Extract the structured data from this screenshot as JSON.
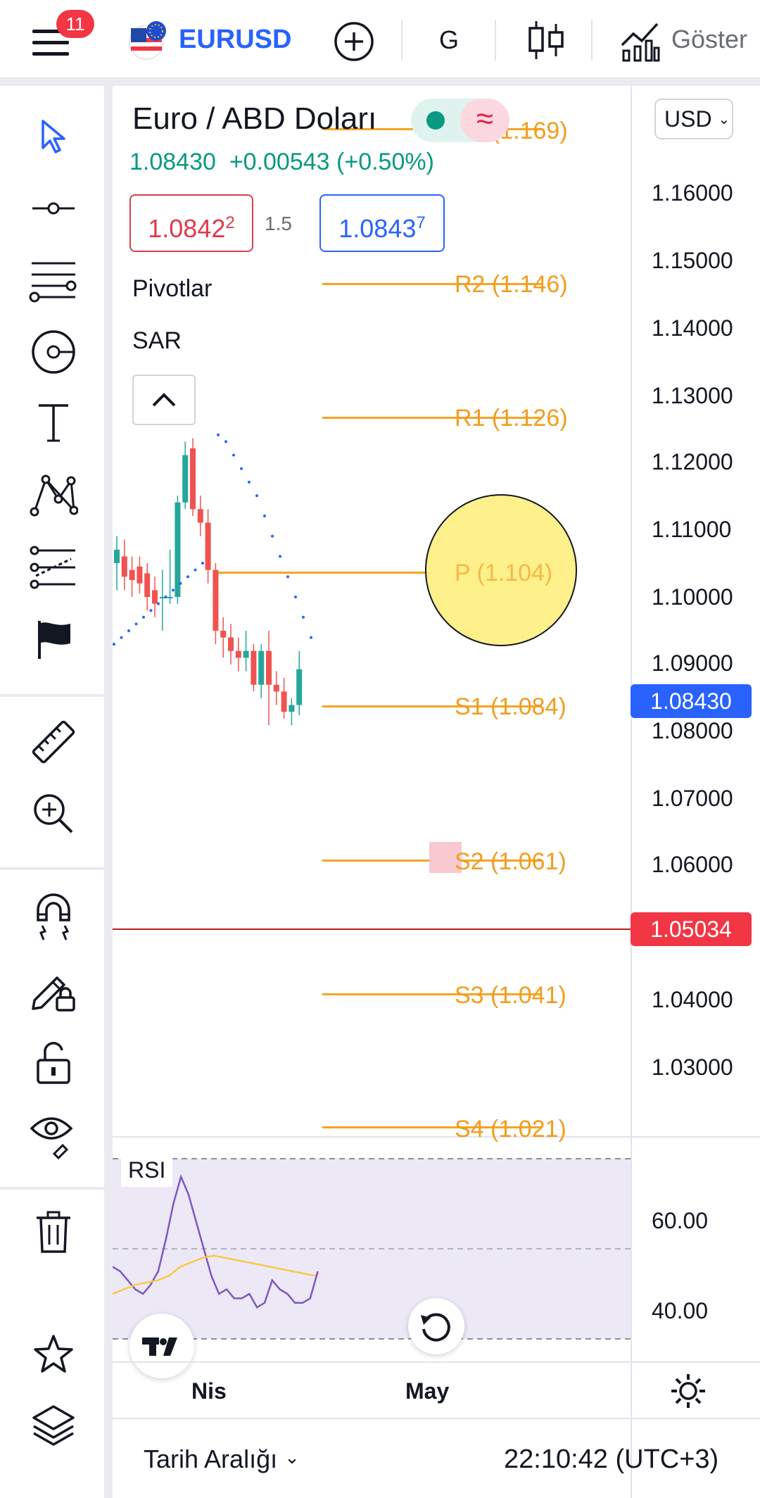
{
  "topbar": {
    "notification_count": "11",
    "symbol": "EURUSD",
    "interval": "G",
    "indicators_label": "Göster"
  },
  "legend": {
    "title": "Euro / ABD Doları",
    "price": "1.08430",
    "change": "+0.00543 (+0.50%)",
    "bid_main": "1.0842",
    "bid_sup": "2",
    "spread": "1.5",
    "ask_main": "1.0843",
    "ask_sup": "7",
    "study_pivots": "Pivotlar",
    "study_sar": "SAR"
  },
  "currency_select": {
    "value": "USD"
  },
  "pivots": [
    {
      "label": "R3 (1.169)",
      "value": 1.169
    },
    {
      "label": "R2 (1.146)",
      "value": 1.146
    },
    {
      "label": "R1 (1.126)",
      "value": 1.126
    },
    {
      "label": "P (1.104)",
      "value": 1.104
    },
    {
      "label": "S1 (1.084)",
      "value": 1.084
    },
    {
      "label": "S2 (1.061)",
      "value": 1.061
    },
    {
      "label": "S3 (1.041)",
      "value": 1.041
    },
    {
      "label": "S4 (1.021)",
      "value": 1.021
    }
  ],
  "price_axis": {
    "ticks": [
      "1.16000",
      "1.15000",
      "1.14000",
      "1.13000",
      "1.12000",
      "1.11000",
      "1.10000",
      "1.09000",
      "1.08000",
      "1.07000",
      "1.06000",
      "1.05000",
      "1.04000",
      "1.03000"
    ],
    "last_price": "1.08430",
    "crosshair_price": "1.05034"
  },
  "rsi": {
    "label": "RSI",
    "ticks": [
      "60.00",
      "40.00"
    ]
  },
  "time_axis": {
    "labels": [
      "Nis",
      "May"
    ]
  },
  "bottombar": {
    "date_range_label": "Tarih Aralığı",
    "clock": "22:10:42 (UTC+3)"
  },
  "colors": {
    "up": "#26a69a",
    "down": "#ef5350",
    "pivot": "#f5a524",
    "accent_blue": "#2962ff",
    "crosshair_red": "#f23645"
  },
  "chart_data": {
    "type": "candlestick",
    "title": "Euro / ABD Doları",
    "ylim": [
      1.015,
      1.175
    ],
    "x_ticks": [
      "Nis",
      "May"
    ],
    "candles": [
      {
        "o": 1.1,
        "h": 1.104,
        "l": 1.096,
        "c": 1.102
      },
      {
        "o": 1.101,
        "h": 1.1035,
        "l": 1.096,
        "c": 1.098
      },
      {
        "o": 1.099,
        "h": 1.101,
        "l": 1.095,
        "c": 1.0975
      },
      {
        "o": 1.0995,
        "h": 1.101,
        "l": 1.0955,
        "c": 1.097
      },
      {
        "o": 1.0985,
        "h": 1.1,
        "l": 1.093,
        "c": 1.095
      },
      {
        "o": 1.096,
        "h": 1.098,
        "l": 1.092,
        "c": 1.094
      },
      {
        "o": 1.095,
        "h": 1.099,
        "l": 1.09,
        "c": 1.095
      },
      {
        "o": 1.095,
        "h": 1.102,
        "l": 1.094,
        "c": 1.095
      },
      {
        "o": 1.095,
        "h": 1.11,
        "l": 1.094,
        "c": 1.109
      },
      {
        "o": 1.109,
        "h": 1.118,
        "l": 1.108,
        "c": 1.116
      },
      {
        "o": 1.117,
        "h": 1.1185,
        "l": 1.107,
        "c": 1.108
      },
      {
        "o": 1.108,
        "h": 1.11,
        "l": 1.104,
        "c": 1.106
      },
      {
        "o": 1.106,
        "h": 1.108,
        "l": 1.097,
        "c": 1.099
      },
      {
        "o": 1.099,
        "h": 1.1,
        "l": 1.088,
        "c": 1.09
      },
      {
        "o": 1.09,
        "h": 1.092,
        "l": 1.086,
        "c": 1.089
      },
      {
        "o": 1.089,
        "h": 1.091,
        "l": 1.085,
        "c": 1.087
      },
      {
        "o": 1.087,
        "h": 1.089,
        "l": 1.084,
        "c": 1.086
      },
      {
        "o": 1.086,
        "h": 1.09,
        "l": 1.084,
        "c": 1.087
      },
      {
        "o": 1.087,
        "h": 1.088,
        "l": 1.081,
        "c": 1.082
      },
      {
        "o": 1.082,
        "h": 1.088,
        "l": 1.08,
        "c": 1.087
      },
      {
        "o": 1.087,
        "h": 1.09,
        "l": 1.076,
        "c": 1.082
      },
      {
        "o": 1.082,
        "h": 1.084,
        "l": 1.079,
        "c": 1.081
      },
      {
        "o": 1.081,
        "h": 1.083,
        "l": 1.077,
        "c": 1.078
      },
      {
        "o": 1.078,
        "h": 1.08,
        "l": 1.076,
        "c": 1.079
      },
      {
        "o": 1.079,
        "h": 1.087,
        "l": 1.0775,
        "c": 1.0843
      }
    ],
    "sar_below": [
      1.088,
      1.089,
      1.09,
      1.091,
      1.092,
      1.093,
      1.094,
      1.095,
      1.096,
      1.097,
      1.098,
      1.099,
      1.1
    ],
    "sar_above": [
      1.119,
      1.118,
      1.116,
      1.114,
      1.112,
      1.11,
      1.107,
      1.104,
      1.101,
      1.098,
      1.095,
      1.092,
      1.089
    ],
    "rsi": {
      "ylim": [
        30,
        70
      ],
      "levels": [
        70,
        50,
        30
      ],
      "values": [
        46,
        45,
        43,
        41,
        40,
        42,
        45,
        52,
        60,
        66,
        62,
        56,
        50,
        44,
        40,
        41,
        39,
        39,
        40,
        37,
        38,
        43,
        41,
        40,
        38,
        38,
        39,
        45
      ],
      "ma": [
        40,
        41,
        42,
        42.5,
        43,
        44,
        46,
        47,
        48,
        48.5,
        48,
        47.5,
        47,
        46.5,
        46,
        45.5,
        45,
        44.5,
        44
      ]
    }
  }
}
